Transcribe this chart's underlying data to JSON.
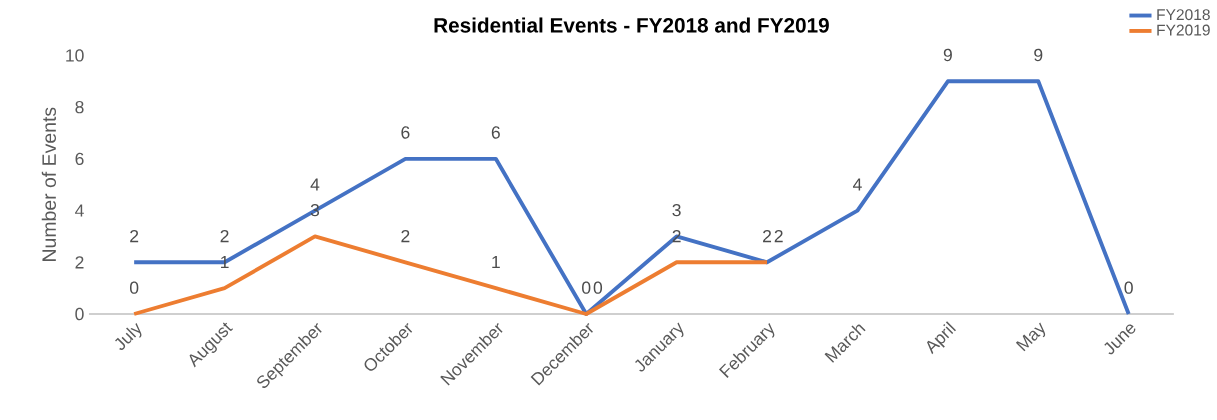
{
  "chart_data": {
    "type": "line",
    "title": "Residential Events - FY2018 and FY2019",
    "ylabel": "Number of Events",
    "categories": [
      "July",
      "August",
      "September",
      "October",
      "November",
      "December",
      "January",
      "February",
      "March",
      "April",
      "May",
      "June"
    ],
    "series": [
      {
        "name": "FY2018",
        "color": "#4472c4",
        "values": [
          2,
          2,
          4,
          6,
          6,
          0,
          3,
          2,
          4,
          9,
          9,
          0
        ]
      },
      {
        "name": "FY2019",
        "color": "#ed7d31",
        "values": [
          0,
          1,
          3,
          2,
          1,
          0,
          2,
          2,
          null,
          null,
          null,
          null
        ]
      }
    ],
    "ylim": [
      0,
      10
    ],
    "yticks": [
      0,
      2,
      4,
      6,
      8,
      10
    ],
    "grid": false,
    "legend": "top right",
    "data_labels": true,
    "marker": "none",
    "line_style": "solid"
  }
}
